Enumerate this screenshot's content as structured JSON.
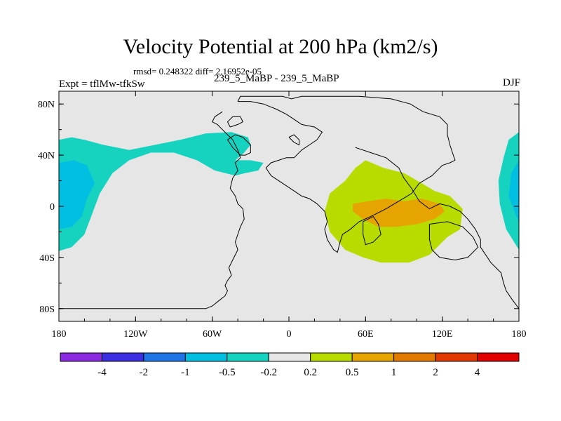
{
  "header": {
    "title": "Velocity Potential at 200 hPa (km2/s)",
    "stats": "rmsd= 0.248322 diff= 2.16952e-05",
    "expt": "Expt = tflMw-tfkSw",
    "center_label": "239_5_MaBP - 239_5_MaBP",
    "season": "DJF"
  },
  "chart_data": {
    "type": "heatmap",
    "title": "Velocity Potential at 200 hPa (km2/s)",
    "units": "km2/s",
    "projection": "cylindrical equidistant",
    "xlim": [
      -180,
      180
    ],
    "ylim": [
      -90,
      90
    ],
    "x_ticks": [
      {
        "value": -180,
        "label": "180"
      },
      {
        "value": -120,
        "label": "120W"
      },
      {
        "value": -60,
        "label": "60W"
      },
      {
        "value": 0,
        "label": "0"
      },
      {
        "value": 60,
        "label": "60E"
      },
      {
        "value": 120,
        "label": "120E"
      },
      {
        "value": 180,
        "label": "180"
      }
    ],
    "y_ticks": [
      {
        "value": 80,
        "label": "80N"
      },
      {
        "value": 40,
        "label": "40N"
      },
      {
        "value": 0,
        "label": "0"
      },
      {
        "value": -40,
        "label": "40S"
      },
      {
        "value": -80,
        "label": "80S"
      }
    ],
    "background_color": "#e6e6e6",
    "contour_fills": [
      {
        "name": "north-pacific-negative",
        "range": "-0.5 to -0.2",
        "color": "#16d3c0",
        "points": [
          [
            -180,
            52
          ],
          [
            -170,
            54
          ],
          [
            -160,
            52
          ],
          [
            -145,
            48
          ],
          [
            -125,
            44
          ],
          [
            -105,
            48
          ],
          [
            -85,
            52
          ],
          [
            -65,
            57
          ],
          [
            -45,
            58
          ],
          [
            -32,
            54
          ],
          [
            -30,
            48
          ],
          [
            -35,
            42
          ],
          [
            -42,
            36
          ],
          [
            -30,
            36
          ],
          [
            -20,
            34
          ],
          [
            -24,
            28
          ],
          [
            -34,
            26
          ],
          [
            -42,
            24
          ],
          [
            -58,
            28
          ],
          [
            -72,
            36
          ],
          [
            -90,
            42
          ],
          [
            -108,
            42
          ],
          [
            -125,
            36
          ],
          [
            -138,
            26
          ],
          [
            -148,
            10
          ],
          [
            -154,
            -6
          ],
          [
            -160,
            -22
          ],
          [
            -170,
            -32
          ],
          [
            -180,
            -35
          ]
        ]
      },
      {
        "name": "north-pacific-core",
        "range": "-1 to -0.5",
        "color": "#00bfe0",
        "points": [
          [
            -180,
            34
          ],
          [
            -168,
            36
          ],
          [
            -158,
            32
          ],
          [
            -152,
            18
          ],
          [
            -158,
            6
          ],
          [
            -162,
            -8
          ],
          [
            -170,
            -16
          ],
          [
            -180,
            -18
          ]
        ]
      },
      {
        "name": "dateline-east-negative",
        "range": "-0.5 to -0.2",
        "color": "#16d3c0",
        "points": [
          [
            180,
            58
          ],
          [
            172,
            52
          ],
          [
            168,
            38
          ],
          [
            164,
            20
          ],
          [
            165,
            2
          ],
          [
            170,
            -18
          ],
          [
            180,
            -34
          ]
        ]
      },
      {
        "name": "dateline-east-core",
        "range": "-1 to -0.5",
        "color": "#00bfe0",
        "points": [
          [
            180,
            36
          ],
          [
            174,
            26
          ],
          [
            172,
            8
          ],
          [
            178,
            -8
          ],
          [
            180,
            -12
          ]
        ]
      },
      {
        "name": "indian-ocean-positive",
        "range": "0.2 to 0.5",
        "color": "#b9dc00",
        "points": [
          [
            60,
            36
          ],
          [
            74,
            30
          ],
          [
            90,
            26
          ],
          [
            104,
            18
          ],
          [
            114,
            12
          ],
          [
            126,
            8
          ],
          [
            136,
            -2
          ],
          [
            134,
            -18
          ],
          [
            124,
            -24
          ],
          [
            110,
            -38
          ],
          [
            94,
            -44
          ],
          [
            72,
            -44
          ],
          [
            58,
            -40
          ],
          [
            44,
            -34
          ],
          [
            32,
            -20
          ],
          [
            28,
            -4
          ],
          [
            32,
            10
          ],
          [
            44,
            20
          ],
          [
            52,
            30
          ]
        ]
      },
      {
        "name": "indian-ocean-core",
        "range": "0.5 to 1",
        "color": "#e5a400",
        "points": [
          [
            50,
            2
          ],
          [
            62,
            4
          ],
          [
            76,
            6
          ],
          [
            90,
            4
          ],
          [
            104,
            6
          ],
          [
            118,
            2
          ],
          [
            122,
            -4
          ],
          [
            114,
            -10
          ],
          [
            100,
            -14
          ],
          [
            84,
            -16
          ],
          [
            70,
            -16
          ],
          [
            58,
            -10
          ],
          [
            50,
            -4
          ]
        ]
      }
    ],
    "land_outlines": [
      [
        [
          -180,
          -80
        ],
        [
          -65,
          -80
        ],
        [
          -60,
          -78
        ],
        [
          -55,
          -74
        ],
        [
          -50,
          -70
        ],
        [
          -48,
          -66
        ],
        [
          -50,
          -62
        ],
        [
          -48,
          -58
        ],
        [
          -45,
          -54
        ],
        [
          -47,
          -48
        ],
        [
          -44,
          -42
        ],
        [
          -40,
          -34
        ],
        [
          -42,
          -28
        ],
        [
          -40,
          -22
        ],
        [
          -38,
          -16
        ],
        [
          -35,
          -10
        ],
        [
          -36,
          -2
        ],
        [
          -40,
          2
        ],
        [
          -42,
          8
        ],
        [
          -46,
          14
        ],
        [
          -44,
          22
        ],
        [
          -40,
          28
        ],
        [
          -42,
          34
        ],
        [
          -38,
          38
        ],
        [
          -40,
          44
        ],
        [
          -44,
          52
        ],
        [
          -48,
          56
        ],
        [
          -52,
          60
        ],
        [
          -56,
          64
        ],
        [
          -60,
          66
        ],
        [
          -58,
          70
        ],
        [
          -52,
          74
        ]
      ],
      [
        [
          -40,
          82
        ],
        [
          -38,
          86
        ],
        [
          -20,
          86
        ],
        [
          -5,
          86
        ],
        [
          2,
          84
        ],
        [
          10,
          86
        ],
        [
          30,
          86
        ],
        [
          55,
          86
        ],
        [
          80,
          84
        ],
        [
          95,
          80
        ],
        [
          105,
          74
        ],
        [
          118,
          70
        ],
        [
          124,
          64
        ],
        [
          124,
          56
        ],
        [
          126,
          48
        ],
        [
          128,
          42
        ],
        [
          130,
          36
        ],
        [
          126,
          34
        ],
        [
          120,
          32
        ],
        [
          112,
          24
        ],
        [
          102,
          18
        ],
        [
          96,
          10
        ],
        [
          86,
          4
        ],
        [
          76,
          -2
        ],
        [
          64,
          -8
        ],
        [
          55,
          -12
        ],
        [
          48,
          -18
        ],
        [
          42,
          -22
        ],
        [
          40,
          -28
        ],
        [
          38,
          -36
        ],
        [
          35,
          -34
        ],
        [
          30,
          -26
        ],
        [
          28,
          -18
        ],
        [
          30,
          -12
        ],
        [
          28,
          -4
        ],
        [
          22,
          2
        ],
        [
          16,
          6
        ],
        [
          10,
          8
        ],
        [
          4,
          12
        ],
        [
          -2,
          16
        ],
        [
          -8,
          20
        ],
        [
          -14,
          24
        ],
        [
          -18,
          30
        ],
        [
          -14,
          34
        ],
        [
          -8,
          36
        ],
        [
          -2,
          38
        ],
        [
          4,
          38
        ],
        [
          10,
          44
        ],
        [
          16,
          48
        ],
        [
          22,
          52
        ],
        [
          26,
          58
        ],
        [
          20,
          62
        ],
        [
          10,
          64
        ],
        [
          4,
          68
        ],
        [
          -2,
          72
        ],
        [
          -10,
          76
        ],
        [
          -20,
          80
        ],
        [
          -30,
          82
        ],
        [
          -40,
          82
        ]
      ],
      [
        [
          52,
          46
        ],
        [
          64,
          42
        ],
        [
          76,
          38
        ],
        [
          86,
          30
        ],
        [
          90,
          22
        ],
        [
          96,
          14
        ],
        [
          102,
          4
        ],
        [
          110,
          -2
        ],
        [
          118,
          2
        ],
        [
          126,
          0
        ],
        [
          134,
          -4
        ],
        [
          140,
          -10
        ],
        [
          146,
          -18
        ],
        [
          150,
          -26
        ],
        [
          150,
          -32
        ],
        [
          154,
          -38
        ],
        [
          158,
          -44
        ],
        [
          162,
          -48
        ],
        [
          166,
          -52
        ],
        [
          168,
          -60
        ],
        [
          170,
          -66
        ],
        [
          174,
          -72
        ],
        [
          180,
          -80
        ]
      ],
      [
        [
          110,
          -14
        ],
        [
          124,
          -12
        ],
        [
          136,
          -16
        ],
        [
          144,
          -24
        ],
        [
          148,
          -32
        ],
        [
          140,
          -40
        ],
        [
          130,
          -42
        ],
        [
          118,
          -40
        ],
        [
          112,
          -34
        ],
        [
          110,
          -26
        ],
        [
          110,
          -14
        ]
      ],
      [
        [
          58,
          -12
        ],
        [
          66,
          -8
        ],
        [
          70,
          -14
        ],
        [
          72,
          -22
        ],
        [
          66,
          -28
        ],
        [
          60,
          -30
        ],
        [
          58,
          -22
        ],
        [
          58,
          -12
        ]
      ],
      [
        [
          -48,
          52
        ],
        [
          -44,
          46
        ],
        [
          -38,
          40
        ],
        [
          -34,
          40
        ],
        [
          -30,
          42
        ],
        [
          -30,
          48
        ],
        [
          -36,
          54
        ],
        [
          -42,
          56
        ],
        [
          -48,
          52
        ]
      ],
      [
        [
          0,
          54
        ],
        [
          4,
          50
        ],
        [
          8,
          48
        ],
        [
          8,
          52
        ],
        [
          4,
          56
        ],
        [
          0,
          54
        ]
      ],
      [
        [
          -46,
          62
        ],
        [
          -40,
          64
        ],
        [
          -36,
          66
        ],
        [
          -38,
          70
        ],
        [
          -44,
          70
        ],
        [
          -48,
          66
        ],
        [
          -46,
          62
        ]
      ]
    ],
    "colorbar": {
      "label_values": [
        "-4",
        "-2",
        "-1",
        "-0.5",
        "-0.2",
        "0.2",
        "0.5",
        "1",
        "2",
        "4"
      ],
      "colors": [
        "#8a2be2",
        "#3b2ee0",
        "#2075e6",
        "#00bfe0",
        "#16d3c0",
        "#e6e6e6",
        "#b9dc00",
        "#e5a400",
        "#e37a00",
        "#e03800",
        "#e00000"
      ]
    }
  }
}
